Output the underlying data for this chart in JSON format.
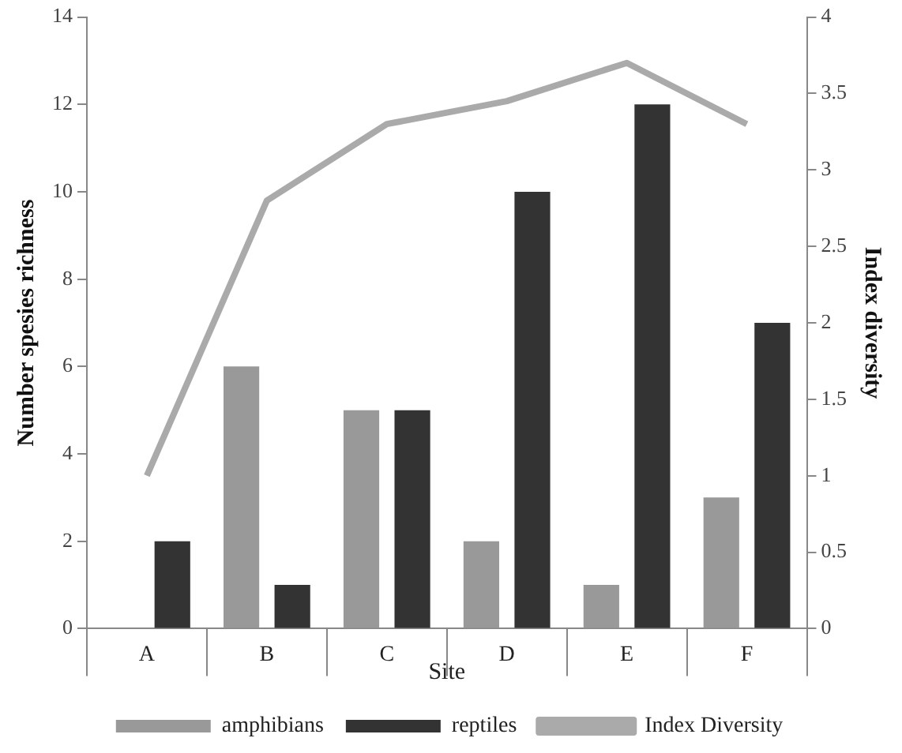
{
  "chart_data": {
    "type": "bar",
    "xlabel": "Site",
    "ylabel": "Number spesies richness",
    "y2label": "Index diversity",
    "categories": [
      "A",
      "B",
      "C",
      "D",
      "E",
      "F"
    ],
    "series": [
      {
        "name": "amphibians",
        "color": "#999999",
        "values": [
          0,
          6,
          5,
          2,
          1,
          3
        ]
      },
      {
        "name": "reptiles",
        "color": "#333333",
        "values": [
          2,
          1,
          5,
          10,
          12,
          7
        ]
      },
      {
        "name": "Index Diversity",
        "type": "line",
        "axis": "y2",
        "color": "#aaaaaa",
        "values": [
          1.0,
          2.8,
          3.3,
          3.45,
          3.7,
          3.3
        ],
        "marker": "none"
      }
    ],
    "ylim": [
      0,
      14
    ],
    "yticks": [
      0,
      2,
      4,
      6,
      8,
      10,
      12,
      14
    ],
    "y2lim": [
      0,
      4
    ],
    "y2ticks": [
      0,
      0.5,
      1,
      1.5,
      2,
      2.5,
      3,
      3.5,
      4
    ],
    "grid": false,
    "legend": "bottom"
  }
}
